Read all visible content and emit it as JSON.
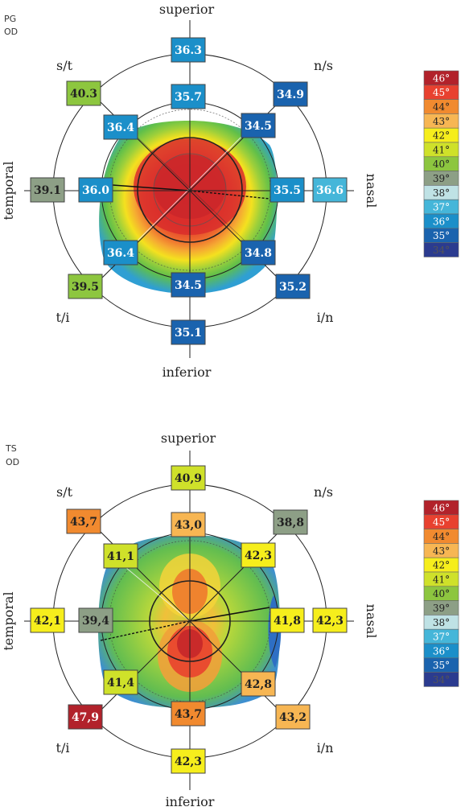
{
  "panels": [
    {
      "id_line1": "PG",
      "id_line2": "OD",
      "directions": {
        "superior": "superior",
        "inferior": "inferior",
        "temporal": "temporal",
        "nasal": "nasal",
        "st": "s/t",
        "ns": "n/s",
        "ti": "t/i",
        "in": "i/n"
      },
      "outer_values": {
        "sup": "36.3",
        "ns": "34.9",
        "nas": "36.6",
        "in": "35.2",
        "inf": "35.1",
        "ti": "39.5",
        "tem": "39.1",
        "st": "40.3"
      },
      "inner_values": {
        "sup": "35.7",
        "ns": "34.5",
        "nas": "35.5",
        "in": "34.8",
        "inf": "34.5",
        "ti": "36.4",
        "tem": "36.0",
        "st": "36.4"
      }
    },
    {
      "id_line1": "TS",
      "id_line2": "OD",
      "directions": {
        "superior": "superior",
        "inferior": "inferior",
        "temporal": "temporal",
        "nasal": "nasal",
        "st": "s/t",
        "ns": "n/s",
        "ti": "t/i",
        "in": "i/n"
      },
      "outer_values": {
        "sup": "40,9",
        "ns": "38,8",
        "nas": "42,3",
        "in": "43,2",
        "inf": "42,3",
        "ti": "47,9",
        "tem": "42,1",
        "st": "43,7"
      },
      "inner_values": {
        "sup": "43,0",
        "ns": "42,3",
        "nas": "41,8",
        "in": "42,8",
        "inf": "43,7",
        "ti": "41,4",
        "tem": "39,4",
        "st": "41,1"
      }
    }
  ],
  "legend": {
    "labels": [
      "46°",
      "45°",
      "44°",
      "43°",
      "42°",
      "41°",
      "40°",
      "39°",
      "38°",
      "37°",
      "36°",
      "35°",
      "34°"
    ],
    "colors": [
      "#b2222b",
      "#e8412f",
      "#f18a2f",
      "#f7b653",
      "#f6ee1c",
      "#cfe12a",
      "#8dc63f",
      "#8d9f86",
      "#bfe2e5",
      "#45b6d9",
      "#1b8fc9",
      "#1a63ae",
      "#2b3b8f"
    ],
    "text_colors": [
      "#fff",
      "#fff",
      "#222",
      "#222",
      "#222",
      "#222",
      "#222",
      "#222",
      "#222",
      "#fff",
      "#fff",
      "#fff",
      "#555"
    ]
  }
}
